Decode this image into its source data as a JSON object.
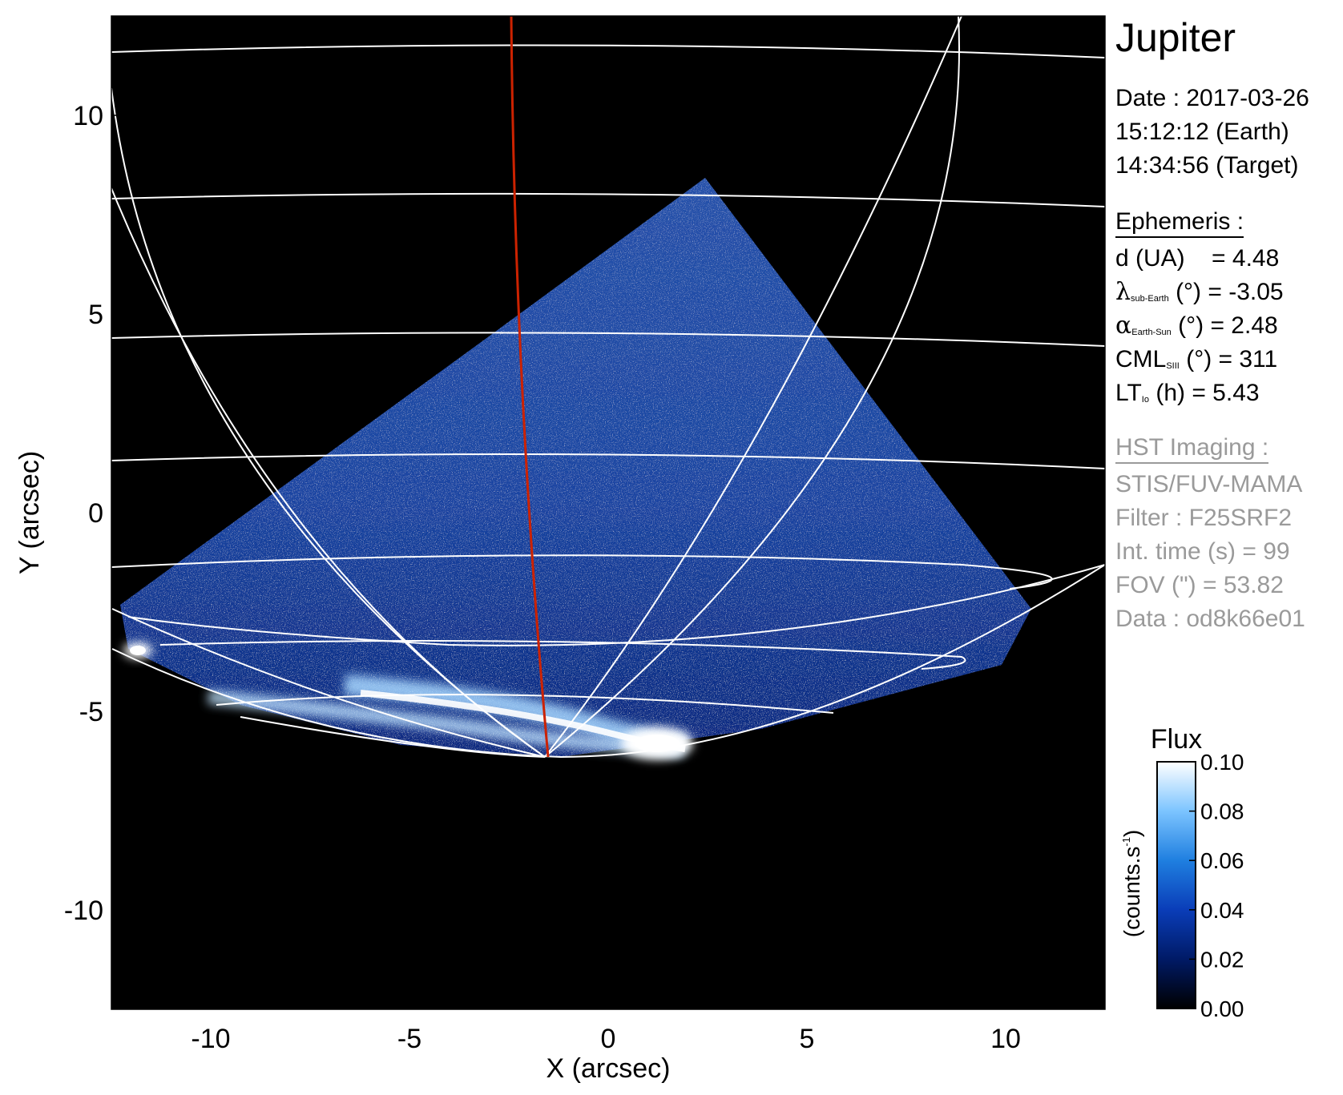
{
  "chart_data": {
    "type": "heatmap",
    "xlabel": "X (arcsec)",
    "ylabel": "Y (arcsec)",
    "xlim": [
      -12.5,
      12.5
    ],
    "ylim": [
      -12.5,
      12.5
    ],
    "xticks": [
      -10,
      -5,
      0,
      5,
      10
    ],
    "yticks": [
      -10,
      -5,
      0,
      5,
      10
    ],
    "colorbar": {
      "title": "Flux",
      "label": "(counts.s-1)",
      "range": [
        0.0,
        0.1
      ],
      "ticks": [
        "0.10",
        "0.08",
        "0.06",
        "0.04",
        "0.02",
        "0.00"
      ],
      "colors": [
        "#000000",
        "#001a66",
        "#0a3db8",
        "#1f7fe0",
        "#7cc4ff",
        "#ffffff"
      ]
    },
    "overlay_colors": {
      "grid": "#ffffff",
      "meridian": "#cc2200"
    }
  },
  "panel": {
    "title": "Jupiter",
    "date_line": "Date : 2017-03-26",
    "earth_time": "15:12:12 (Earth)",
    "target_time": "14:34:56 (Target)",
    "ephemeris": {
      "header": "Ephemeris :",
      "d_label": "d (UA)",
      "d_value": "= 4.48",
      "lambda_sym": "λ",
      "lambda_sub": "sub-Earth",
      "lambda_rest": "(°) = -3.05",
      "alpha_sym": "α",
      "alpha_sub": "Earth-Sun",
      "alpha_rest": "(°) = 2.48",
      "cml_sym": "CML",
      "cml_sub": "SIII",
      "cml_rest": "(°) = 311",
      "lt_sym": "LT",
      "lt_sub": "Io",
      "lt_rest": "(h) = 5.43"
    },
    "hst": {
      "header": "HST Imaging :",
      "instrument": "STIS/FUV-MAMA",
      "filter": "Filter : F25SRF2",
      "int_time": "Int. time (s) = 99",
      "fov": "FOV (\") = 53.82",
      "data": "Data : od8k66e01"
    }
  }
}
